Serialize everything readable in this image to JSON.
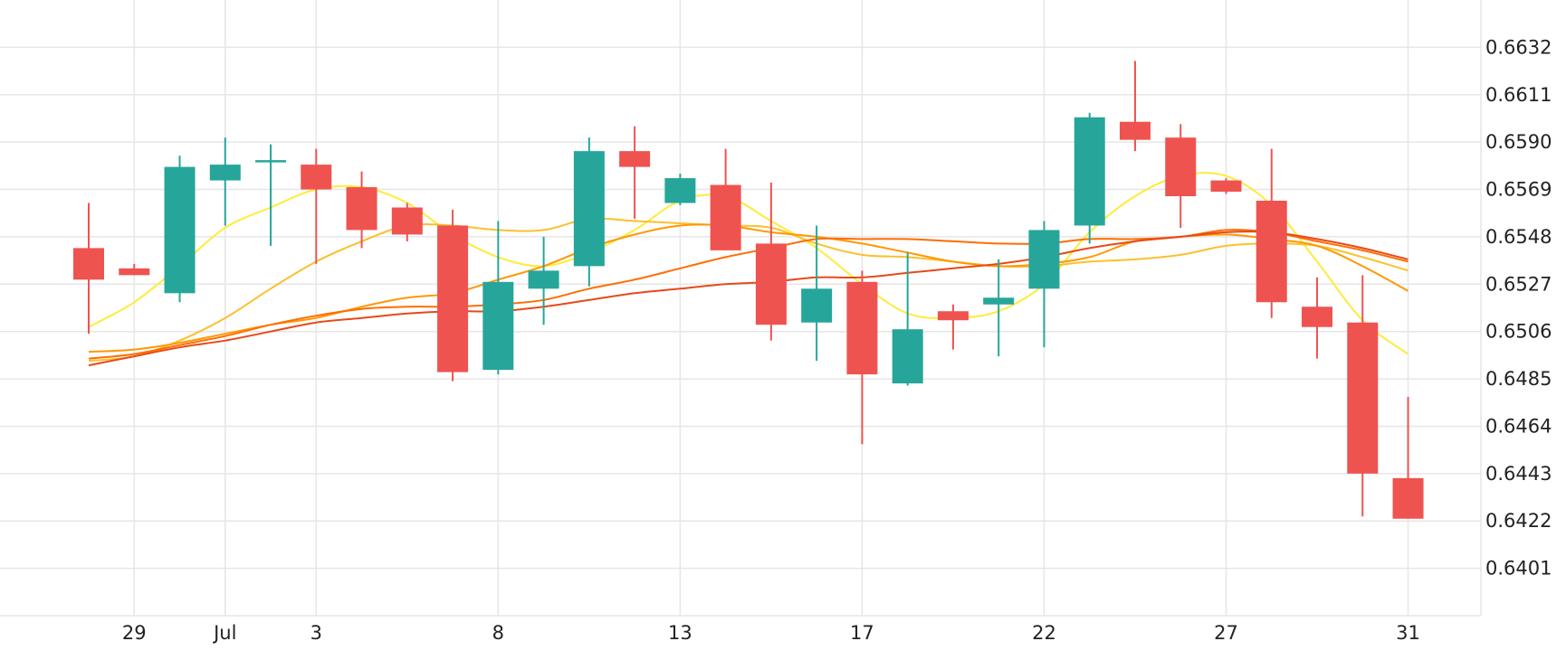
{
  "chart_data": {
    "type": "candlestick",
    "x_ticks": [
      "29",
      "Jul",
      "3",
      "8",
      "13",
      "17",
      "22",
      "27",
      "31"
    ],
    "y_ticks": [
      "0.6401",
      "0.6422",
      "0.6443",
      "0.6464",
      "0.6485",
      "0.6506",
      "0.6527",
      "0.6548",
      "0.6569",
      "0.6590",
      "0.6611",
      "0.6632"
    ],
    "ylim": [
      0.638,
      0.6653
    ],
    "grid": true,
    "up_color": "#26a69a",
    "down_color": "#ef5350",
    "candles": [
      {
        "d": "Jun 28",
        "o": 0.6543,
        "h": 0.6563,
        "l": 0.6505,
        "c": 0.6529
      },
      {
        "d": "Jun 29",
        "o": 0.6534,
        "h": 0.6536,
        "l": 0.6531,
        "c": 0.6531
      },
      {
        "d": "Jun 30",
        "o": 0.6523,
        "h": 0.6584,
        "l": 0.6519,
        "c": 0.6579
      },
      {
        "d": "Jul 1",
        "o": 0.6573,
        "h": 0.6592,
        "l": 0.6553,
        "c": 0.658
      },
      {
        "d": "Jul 2",
        "o": 0.6581,
        "h": 0.6589,
        "l": 0.6544,
        "c": 0.6582
      },
      {
        "d": "Jul 3",
        "o": 0.658,
        "h": 0.6587,
        "l": 0.6536,
        "c": 0.6569
      },
      {
        "d": "Jul 4",
        "o": 0.657,
        "h": 0.6577,
        "l": 0.6543,
        "c": 0.6551
      },
      {
        "d": "Jul 5",
        "o": 0.6561,
        "h": 0.6563,
        "l": 0.6546,
        "c": 0.6549
      },
      {
        "d": "Jul 7",
        "o": 0.6553,
        "h": 0.656,
        "l": 0.6484,
        "c": 0.6488
      },
      {
        "d": "Jul 8",
        "o": 0.6489,
        "h": 0.6555,
        "l": 0.6487,
        "c": 0.6528
      },
      {
        "d": "Jul 9",
        "o": 0.6525,
        "h": 0.6548,
        "l": 0.6509,
        "c": 0.6533
      },
      {
        "d": "Jul 10",
        "o": 0.6535,
        "h": 0.6592,
        "l": 0.6526,
        "c": 0.6586
      },
      {
        "d": "Jul 11",
        "o": 0.6586,
        "h": 0.6597,
        "l": 0.6556,
        "c": 0.6579
      },
      {
        "d": "Jul 13",
        "o": 0.6563,
        "h": 0.6576,
        "l": 0.6562,
        "c": 0.6574
      },
      {
        "d": "Jul 14",
        "o": 0.6571,
        "h": 0.6587,
        "l": 0.6542,
        "c": 0.6542
      },
      {
        "d": "Jul 15",
        "o": 0.6545,
        "h": 0.6572,
        "l": 0.6502,
        "c": 0.6509
      },
      {
        "d": "Jul 16",
        "o": 0.651,
        "h": 0.6553,
        "l": 0.6493,
        "c": 0.6525
      },
      {
        "d": "Jul 17",
        "o": 0.6528,
        "h": 0.6533,
        "l": 0.6456,
        "c": 0.6487
      },
      {
        "d": "Jul 18",
        "o": 0.6483,
        "h": 0.6541,
        "l": 0.6482,
        "c": 0.6507
      },
      {
        "d": "Jul 19",
        "o": 0.6515,
        "h": 0.6518,
        "l": 0.6498,
        "c": 0.6511
      },
      {
        "d": "Jul 21",
        "o": 0.6518,
        "h": 0.6538,
        "l": 0.6495,
        "c": 0.6521
      },
      {
        "d": "Jul 22",
        "o": 0.6525,
        "h": 0.6555,
        "l": 0.6499,
        "c": 0.6551
      },
      {
        "d": "Jul 23",
        "o": 0.6553,
        "h": 0.6603,
        "l": 0.6545,
        "c": 0.6601
      },
      {
        "d": "Jul 24",
        "o": 0.6599,
        "h": 0.6626,
        "l": 0.6586,
        "c": 0.6591
      },
      {
        "d": "Jul 25",
        "o": 0.6592,
        "h": 0.6598,
        "l": 0.6552,
        "c": 0.6566
      },
      {
        "d": "Jul 27",
        "o": 0.6573,
        "h": 0.6574,
        "l": 0.6567,
        "c": 0.6568
      },
      {
        "d": "Jul 28",
        "o": 0.6564,
        "h": 0.6587,
        "l": 0.6512,
        "c": 0.6519
      },
      {
        "d": "Jul 29",
        "o": 0.6517,
        "h": 0.653,
        "l": 0.6494,
        "c": 0.6508
      },
      {
        "d": "Jul 30",
        "o": 0.651,
        "h": 0.6531,
        "l": 0.6424,
        "c": 0.6443
      },
      {
        "d": "Jul 31",
        "o": 0.6441,
        "h": 0.6477,
        "l": 0.6423,
        "c": 0.6423
      }
    ],
    "moving_averages": [
      {
        "color": "#ffeb3b",
        "values": [
          0.6508,
          0.6519,
          0.6535,
          0.6552,
          0.6561,
          0.6569,
          0.657,
          0.6563,
          0.6549,
          0.6539,
          0.6535,
          0.6541,
          0.6551,
          0.6564,
          0.6566,
          0.6555,
          0.6543,
          0.6527,
          0.6514,
          0.6512,
          0.6515,
          0.6527,
          0.655,
          0.6566,
          0.6575,
          0.6575,
          0.6562,
          0.6537,
          0.6511,
          0.6496
        ]
      },
      {
        "color": "#fbc02d",
        "values": [
          0.6493,
          0.6495,
          0.6502,
          0.6512,
          0.6525,
          0.6537,
          0.6546,
          0.6553,
          0.6553,
          0.6551,
          0.6551,
          0.6556,
          0.6555,
          0.6554,
          0.6553,
          0.6552,
          0.6545,
          0.654,
          0.6539,
          0.6537,
          0.6535,
          0.6535,
          0.6537,
          0.6538,
          0.654,
          0.6544,
          0.6545,
          0.6544,
          0.6539,
          0.6533
        ]
      },
      {
        "color": "#ff9800",
        "values": [
          0.6497,
          0.6498,
          0.6501,
          0.6505,
          0.6509,
          0.6512,
          0.6517,
          0.6521,
          0.6523,
          0.6529,
          0.6535,
          0.6543,
          0.6549,
          0.6553,
          0.6553,
          0.655,
          0.6548,
          0.6545,
          0.6541,
          0.6537,
          0.6535,
          0.6536,
          0.6539,
          0.6546,
          0.6548,
          0.6549,
          0.6547,
          0.6544,
          0.6535,
          0.6524
        ]
      },
      {
        "color": "#ff6d00",
        "values": [
          0.6494,
          0.6496,
          0.65,
          0.6504,
          0.6509,
          0.6513,
          0.6516,
          0.6517,
          0.6517,
          0.6518,
          0.652,
          0.6525,
          0.6529,
          0.6534,
          0.6539,
          0.6543,
          0.6547,
          0.6547,
          0.6547,
          0.6546,
          0.6545,
          0.6545,
          0.6547,
          0.6547,
          0.6548,
          0.6551,
          0.655,
          0.6546,
          0.6542,
          0.6537
        ]
      },
      {
        "color": "#e64a19",
        "values": [
          0.6491,
          0.6495,
          0.6499,
          0.6502,
          0.6506,
          0.651,
          0.6512,
          0.6514,
          0.6515,
          0.6515,
          0.6517,
          0.652,
          0.6523,
          0.6525,
          0.6527,
          0.6528,
          0.653,
          0.653,
          0.6532,
          0.6534,
          0.6536,
          0.6539,
          0.6543,
          0.6546,
          0.6548,
          0.655,
          0.655,
          0.6547,
          0.6543,
          0.6538
        ]
      }
    ]
  }
}
